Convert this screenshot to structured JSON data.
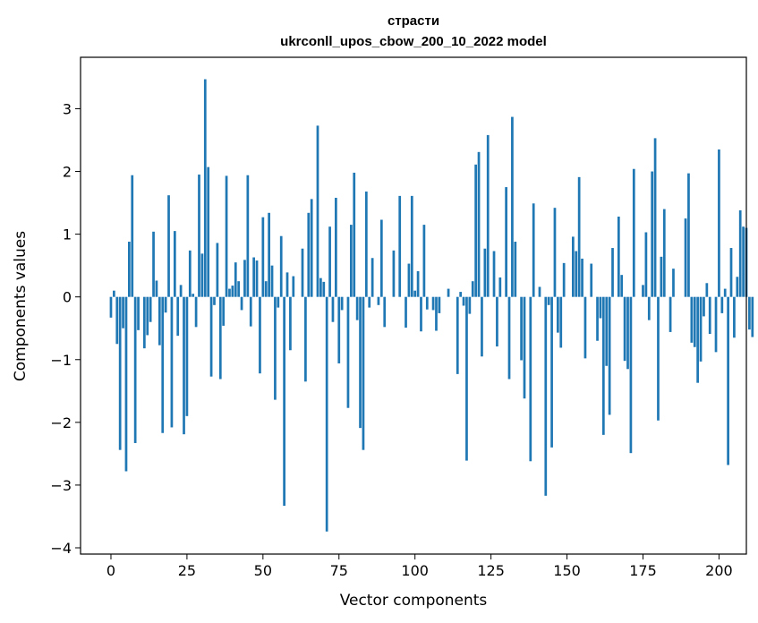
{
  "chart_data": {
    "type": "bar",
    "title": "страсти",
    "subtitle": "ukrconll_upos_cbow_200_10_2022 model",
    "xlabel": "Vector components",
    "ylabel": "Components values",
    "xlim": [
      -10,
      209
    ],
    "ylim": [
      -4.1,
      3.82
    ],
    "xticks": [
      0,
      25,
      50,
      75,
      100,
      125,
      150,
      175,
      200
    ],
    "yticks": [
      -4,
      -3,
      -2,
      -1,
      0,
      1,
      2,
      3
    ],
    "grid": false,
    "legend": "none",
    "bar_color": "#1f77b4",
    "values": [
      -0.33,
      0.1,
      -0.75,
      -2.44,
      -0.5,
      -2.78,
      0.88,
      1.94,
      -2.33,
      -0.53,
      0.0,
      -0.82,
      -0.61,
      -0.4,
      1.04,
      0.26,
      -0.77,
      -2.17,
      -0.25,
      1.62,
      -2.08,
      1.05,
      -0.62,
      0.19,
      -2.19,
      -1.9,
      0.74,
      0.05,
      -0.48,
      1.95,
      0.69,
      3.47,
      2.07,
      -1.27,
      -0.13,
      0.86,
      -1.31,
      -0.46,
      1.93,
      0.13,
      0.18,
      0.55,
      0.25,
      -0.21,
      0.59,
      1.94,
      -0.47,
      0.63,
      0.58,
      -1.22,
      1.27,
      0.25,
      1.34,
      0.5,
      -1.64,
      -0.17,
      0.97,
      -3.33,
      0.39,
      -0.85,
      0.33,
      0.0,
      0.0,
      0.77,
      -1.35,
      1.34,
      1.56,
      0.0,
      2.73,
      0.3,
      0.24,
      -3.74,
      1.12,
      -0.4,
      1.58,
      -1.06,
      -0.21,
      0.0,
      -1.77,
      1.15,
      1.98,
      -0.37,
      -2.09,
      -2.44,
      1.68,
      -0.17,
      0.62,
      0.0,
      -0.13,
      1.23,
      -0.48,
      0.0,
      0.0,
      0.74,
      0.0,
      1.61,
      0.0,
      -0.49,
      0.53,
      1.61,
      0.1,
      0.41,
      -0.55,
      1.15,
      -0.2,
      0.0,
      -0.21,
      -0.54,
      -0.26,
      0.0,
      0.0,
      0.13,
      0.0,
      0.0,
      -1.23,
      0.08,
      -0.14,
      -2.61,
      -0.27,
      0.25,
      2.11,
      2.31,
      -0.95,
      0.77,
      2.58,
      0.0,
      0.73,
      -0.79,
      0.31,
      0.0,
      1.75,
      -1.31,
      2.87,
      0.88,
      0.0,
      -1.01,
      -1.62,
      0.0,
      -2.62,
      1.49,
      0.0,
      0.16,
      0.0,
      -3.17,
      -0.13,
      -2.4,
      1.42,
      -0.57,
      -0.81,
      0.54,
      0.0,
      0.0,
      0.96,
      0.73,
      1.91,
      0.61,
      -0.98,
      0.0,
      0.53,
      0.0,
      -0.7,
      -0.34,
      -2.2,
      -1.1,
      -1.88,
      0.78,
      0.0,
      1.28,
      0.35,
      -1.02,
      -1.15,
      -2.49,
      2.04,
      0.0,
      0.0,
      0.19,
      1.03,
      -0.37,
      2.0,
      2.53,
      -1.97,
      0.64,
      1.4,
      0.0,
      -0.56,
      0.45,
      0.0,
      0.0,
      0.0,
      1.25,
      1.97,
      -0.73,
      -0.8,
      -1.37,
      -1.03,
      -0.31,
      0.22,
      -0.59,
      0.0,
      -0.88,
      2.35,
      -0.26,
      0.13,
      -2.68,
      0.78,
      -0.65,
      0.32,
      1.38,
      1.12,
      1.1,
      -0.52,
      -0.64
    ]
  }
}
